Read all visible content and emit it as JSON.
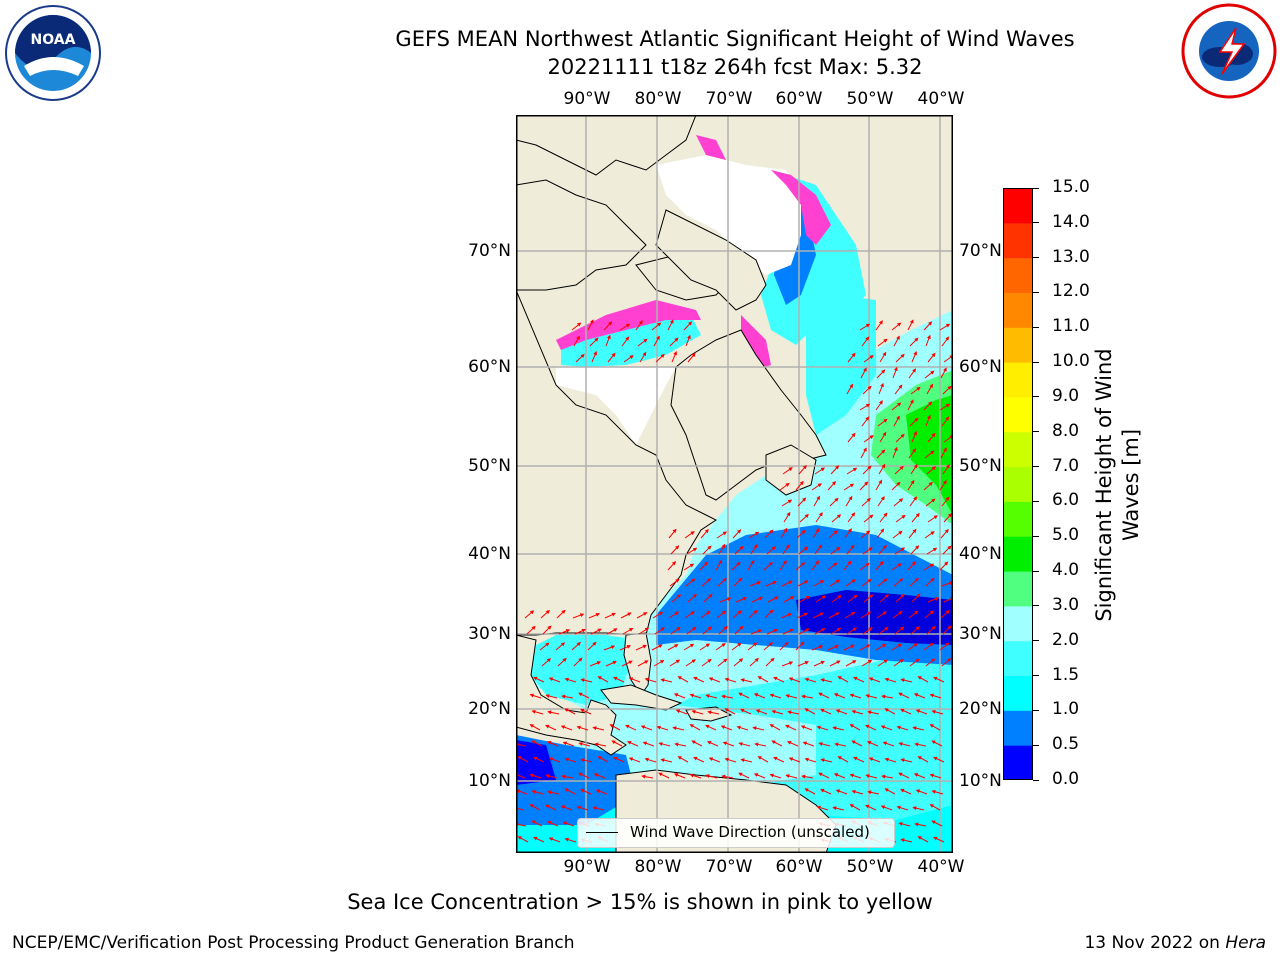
{
  "title": {
    "line1": "GEFS MEAN Northwest Atlantic Significant Height of Wind Waves",
    "line2": "20221111 t18z 264h fcst   Max: 5.32"
  },
  "logos": {
    "left": "noaa-logo",
    "right": "national-weather-service-logo"
  },
  "map": {
    "lon_labels": [
      "90°W",
      "80°W",
      "70°W",
      "60°W",
      "50°W",
      "40°W"
    ],
    "lat_labels": [
      "70°N",
      "60°N",
      "50°N",
      "40°N",
      "30°N",
      "20°N",
      "10°N"
    ],
    "colors": {
      "land": "#efedda",
      "ice_white": "#ffffff",
      "grid": "#b0b0b0",
      "arrow": "#ff0000"
    },
    "legend": "Wind Wave Direction (unscaled)"
  },
  "colorbar": {
    "label_line1": "Significant Height of Wind",
    "label_line2": "Waves [m]",
    "ticks": [
      "0.0",
      "0.5",
      "1.0",
      "1.5",
      "2.0",
      "3.0",
      "4.0",
      "5.0",
      "6.0",
      "7.0",
      "8.0",
      "9.0",
      "10.0",
      "11.0",
      "12.0",
      "13.0",
      "14.0",
      "15.0"
    ],
    "colors": [
      "#0000ff",
      "#0080ff",
      "#00ffff",
      "#40ffff",
      "#a0ffff",
      "#50ff80",
      "#00ee00",
      "#55ff00",
      "#aaff00",
      "#ccff00",
      "#ffff00",
      "#ffee00",
      "#ffbb00",
      "#ff8800",
      "#ff6600",
      "#ff3300",
      "#ff0000"
    ]
  },
  "notes": {
    "sea_ice": "Sea Ice Concentration > 15% is shown in pink to yellow"
  },
  "footer": {
    "left": "NCEP/EMC/Verification Post Processing Product Generation Branch",
    "date": "13 Nov 2022 on ",
    "host": "Hera"
  }
}
